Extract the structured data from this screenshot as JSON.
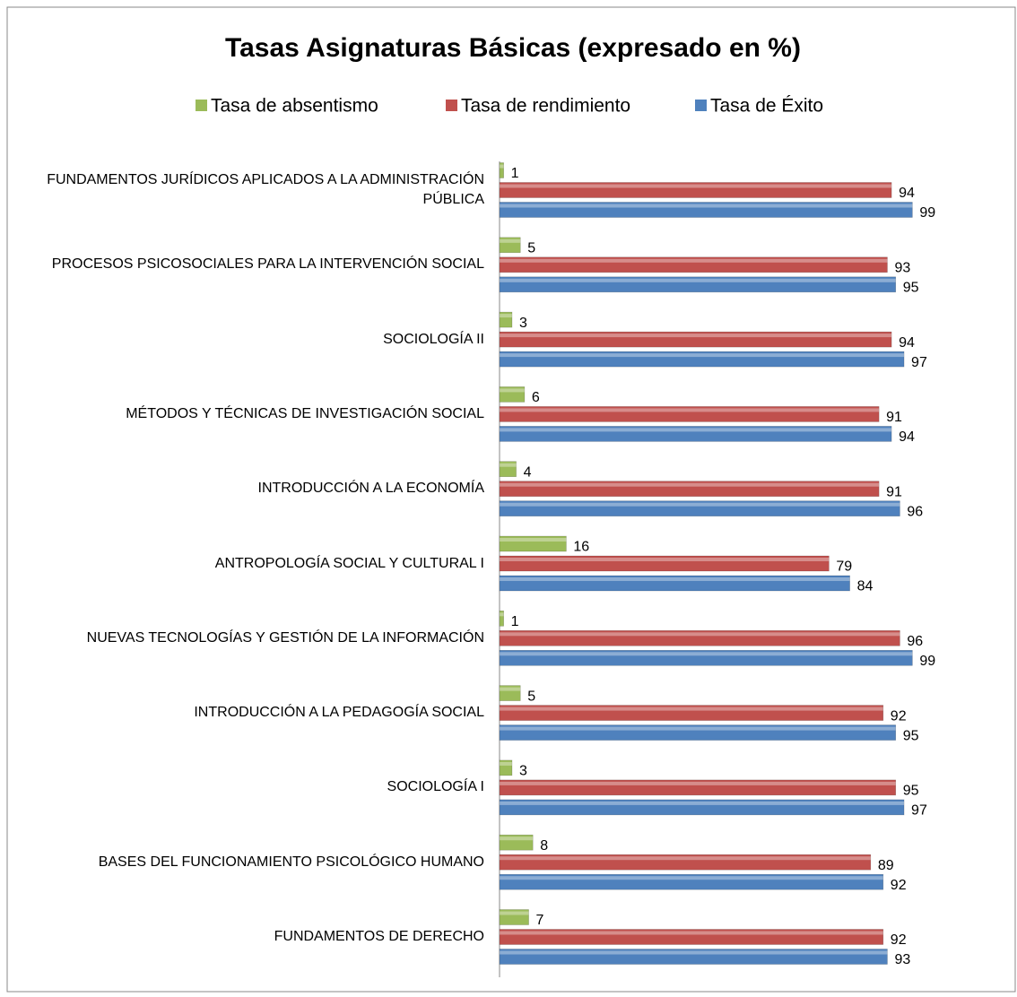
{
  "chart_data": {
    "type": "bar",
    "orientation": "horizontal",
    "title": "Tasas  Asignaturas Básicas (expresado en %)",
    "categories": [
      "FUNDAMENTOS JURÍDICOS APLICADOS A LA ADMINISTRACIÓN PÚBLICA",
      "PROCESOS PSICOSOCIALES PARA LA INTERVENCIÓN SOCIAL",
      "SOCIOLOGÍA II",
      "MÉTODOS Y TÉCNICAS DE INVESTIGACIÓN SOCIAL",
      "INTRODUCCIÓN A LA ECONOMÍA",
      "ANTROPOLOGÍA SOCIAL Y CULTURAL I",
      "NUEVAS TECNOLOGÍAS Y GESTIÓN DE LA INFORMACIÓN",
      "INTRODUCCIÓN A LA PEDAGOGÍA SOCIAL",
      "SOCIOLOGÍA I",
      "BASES DEL FUNCIONAMIENTO PSICOLÓGICO HUMANO",
      "FUNDAMENTOS DE DERECHO"
    ],
    "series": [
      {
        "name": "Tasa de absentismo",
        "color": "#9bbb59",
        "values": [
          1,
          5,
          3,
          6,
          4,
          16,
          1,
          5,
          3,
          8,
          7
        ]
      },
      {
        "name": "Tasa de rendimiento",
        "color": "#c0504d",
        "values": [
          94,
          93,
          94,
          91,
          91,
          79,
          96,
          92,
          95,
          89,
          92
        ]
      },
      {
        "name": "Tasa de Éxito",
        "color": "#4f81bd",
        "values": [
          99,
          95,
          97,
          94,
          96,
          84,
          99,
          95,
          97,
          92,
          93
        ]
      }
    ],
    "xlim": [
      0,
      100
    ],
    "legend": "top"
  }
}
